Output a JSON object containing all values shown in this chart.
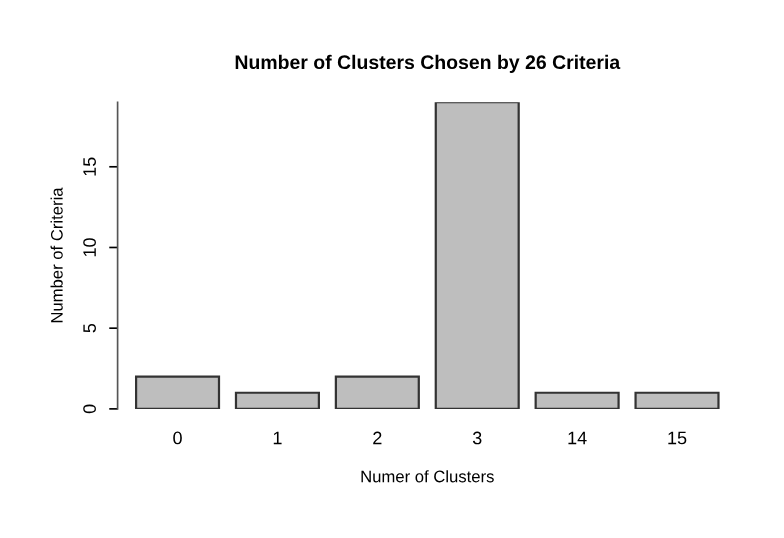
{
  "chart_data": {
    "type": "bar",
    "title": "Number of Clusters Chosen by 26 Criteria",
    "xlabel": "Numer of Clusters",
    "ylabel": "Number of Criteria",
    "categories": [
      "0",
      "1",
      "2",
      "3",
      "14",
      "15"
    ],
    "values": [
      2,
      1,
      2,
      19,
      1,
      1
    ],
    "color": "#bebebe",
    "ylim": [
      0,
      19
    ],
    "yticks": [
      0,
      5,
      10,
      15
    ],
    "grid": false,
    "legend": false
  }
}
